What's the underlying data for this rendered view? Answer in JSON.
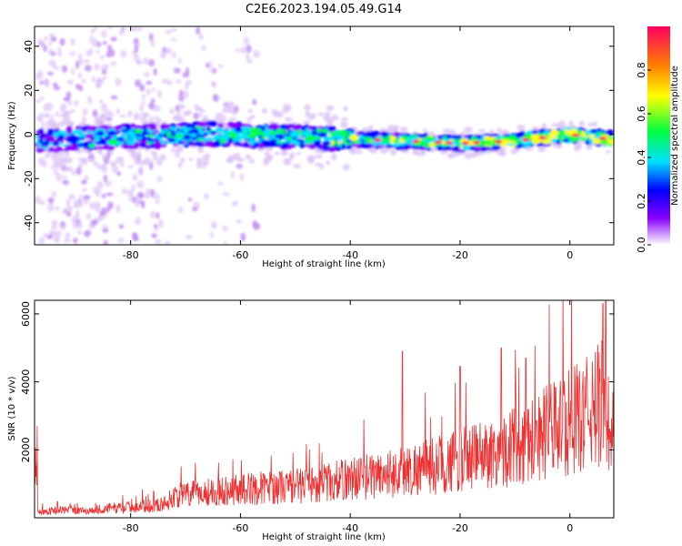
{
  "title": "C2E6.2023.194.05.49.G14",
  "chart_data": [
    {
      "type": "heatmap",
      "xlabel": "Height of straight line (km)",
      "ylabel": "Frequency (Hz)",
      "xlim": [
        -97.5,
        8
      ],
      "ylim": [
        -50,
        49
      ],
      "xticks": [
        -80,
        -60,
        -40,
        -20,
        0
      ],
      "yticks": [
        -40,
        -20,
        0,
        20,
        40
      ],
      "colorbar": {
        "label": "Normalized spectral amplitude",
        "range": [
          0.0,
          1.0
        ],
        "ticks": [
          0.0,
          0.2,
          0.4,
          0.6,
          0.8
        ],
        "tick_labels": [
          "0.0",
          "0.2",
          "0.4",
          "0.6",
          "0.8"
        ],
        "colormap": [
          "#ffffff",
          "#8a00ff",
          "#0000ff",
          "#00e0ff",
          "#00ff40",
          "#ffff00",
          "#ff8000",
          "#ff0060"
        ]
      },
      "ridge": {
        "description_points_x": [
          -97,
          -90,
          -80,
          -70,
          -60,
          -50,
          -40,
          -30,
          -20,
          -10,
          0,
          7
        ],
        "frequency_hz": [
          -3,
          -2,
          -1,
          0,
          0,
          -1,
          -2,
          -3,
          -4,
          -3,
          0,
          -2
        ]
      }
    },
    {
      "type": "line",
      "xlabel": "Height of straight line (km)",
      "ylabel": "SNR (10 * v/v)",
      "xlim": [
        -97.5,
        8
      ],
      "ylim": [
        0,
        6400
      ],
      "xticks": [
        -80,
        -60,
        -40,
        -20,
        0
      ],
      "yticks": [
        2000,
        4000,
        6000
      ],
      "line_color": "#f03030",
      "series": [
        {
          "x": [
            -97,
            -92,
            -88,
            -84,
            -80,
            -76,
            -74,
            -72,
            -68,
            -64,
            -60,
            -56,
            -52,
            -48,
            -44,
            -40,
            -36,
            -32,
            -28,
            -24,
            -20,
            -16,
            -12,
            -8,
            -4,
            0,
            3,
            5,
            6.5,
            7.5
          ],
          "values": [
            200,
            300,
            250,
            350,
            400,
            450,
            500,
            800,
            900,
            1000,
            1050,
            1100,
            1150,
            1200,
            1300,
            1450,
            1550,
            1650,
            1800,
            1950,
            2100,
            2300,
            2500,
            2800,
            3200,
            3500,
            3800,
            4100,
            4400,
            2500
          ],
          "peaks": [
            {
              "x": 6.0,
              "y": 6300
            },
            {
              "x": -30.5,
              "y": 4900
            },
            {
              "x": -12.5,
              "y": 5000
            },
            {
              "x": -20.0,
              "y": 4450
            },
            {
              "x": -8.0,
              "y": 4700
            }
          ]
        }
      ]
    }
  ]
}
